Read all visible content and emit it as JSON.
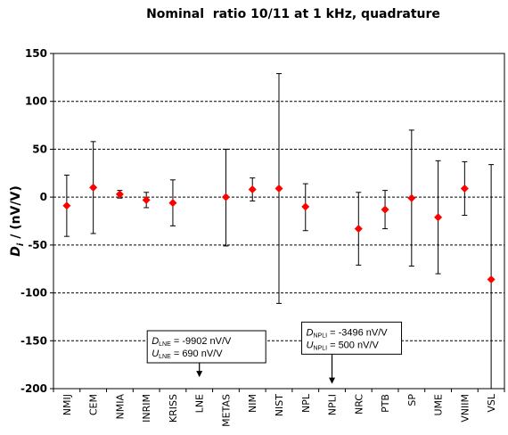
{
  "chart_data": {
    "type": "scatter",
    "title": "Nominal  ratio 10/11 at 1 kHz, quadrature",
    "ylabel_main": "D",
    "ylabel_sub": "i",
    "ylabel_rest": " / (nV/V)",
    "xlabel": "",
    "ylim": [
      -200,
      150
    ],
    "yticks": [
      150,
      100,
      50,
      0,
      -50,
      -100,
      -150,
      -200
    ],
    "grid": "horizontal-dashed",
    "marker_color": "#ff0000",
    "categories": [
      "NMIJ",
      "CEM",
      "NMIA",
      "INRIM",
      "KRISS",
      "LNE",
      "METAS",
      "NIM",
      "NIST",
      "NPL",
      "NPLI",
      "NRC",
      "PTB",
      "SP",
      "UME",
      "VNIIM",
      "VSL"
    ],
    "points": [
      {
        "label": "NMIJ",
        "value": -9,
        "lower": -41,
        "upper": 23
      },
      {
        "label": "CEM",
        "value": 10,
        "lower": -38,
        "upper": 58
      },
      {
        "label": "NMIA",
        "value": 3,
        "lower": -1,
        "upper": 7
      },
      {
        "label": "INRIM",
        "value": -3,
        "lower": -11,
        "upper": 5
      },
      {
        "label": "KRISS",
        "value": -6,
        "lower": -30,
        "upper": 18
      },
      {
        "label": "LNE",
        "value": null,
        "lower": null,
        "upper": null
      },
      {
        "label": "METAS",
        "value": 0,
        "lower": -51,
        "upper": 50
      },
      {
        "label": "NIM",
        "value": 8,
        "lower": -4,
        "upper": 20
      },
      {
        "label": "NIST",
        "value": 9,
        "lower": -111,
        "upper": 129
      },
      {
        "label": "NPL",
        "value": -10,
        "lower": -35,
        "upper": 14
      },
      {
        "label": "NPLI",
        "value": null,
        "lower": null,
        "upper": null
      },
      {
        "label": "NRC",
        "value": -33,
        "lower": -71,
        "upper": 5
      },
      {
        "label": "PTB",
        "value": -13,
        "lower": -33,
        "upper": 7
      },
      {
        "label": "SP",
        "value": -1,
        "lower": -72,
        "upper": 70
      },
      {
        "label": "UME",
        "value": -21,
        "lower": -80,
        "upper": 38
      },
      {
        "label": "VNIIM",
        "value": 9,
        "lower": -19,
        "upper": 37
      },
      {
        "label": "VSL",
        "value": -86,
        "lower": -200,
        "upper": 34
      }
    ],
    "annotations": [
      {
        "arrow_category": "LNE",
        "arrow_from": -173,
        "arrow_to": -188,
        "lines": [
          {
            "main": "D",
            "sub": "LNE",
            "text": " = -9902 nV/V"
          },
          {
            "main": "U",
            "sub": "LNE",
            "text": " = 690 nV/V"
          }
        ]
      },
      {
        "arrow_category": "NPLI",
        "arrow_from": -164,
        "arrow_to": -195,
        "lines": [
          {
            "main": "D",
            "sub": "NPLI",
            "text": " = -3496 nV/V"
          },
          {
            "main": "U",
            "sub": "NPLI",
            "text": " = 500 nV/V"
          }
        ]
      }
    ]
  }
}
